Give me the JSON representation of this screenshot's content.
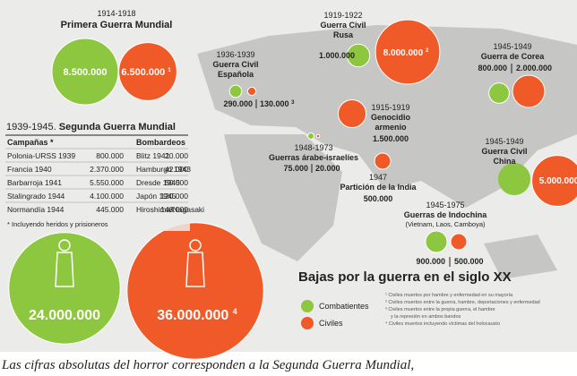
{
  "conflicts": [
    {
      "dates": "1914-1918",
      "name": "Primera Guerra Mundial",
      "combatants": {
        "value": 8500000,
        "label": "8.500.000"
      },
      "civilians": {
        "value": 6500000,
        "label": "6.500.000"
      },
      "note": "1"
    },
    {
      "dates": "1936-1939",
      "name": [
        "Guerra Civil",
        "Española"
      ],
      "combatants": {
        "value": 290000,
        "label": "290.000"
      },
      "civilians": {
        "value": 130000,
        "label": "130.000"
      },
      "note": "3"
    },
    {
      "dates": "1919-1922",
      "name": [
        "Guerra Civil",
        "Rusa"
      ],
      "combatants": {
        "value": 1000000,
        "label": "1.000.000"
      },
      "civilians": {
        "value": 8000000,
        "label": "8.000.000"
      },
      "note": "2"
    },
    {
      "dates": "1945-1949",
      "name": "Guerra de Corea",
      "combatants": {
        "value": 800000,
        "label": "800.000"
      },
      "civilians": {
        "value": 2000000,
        "label": "2.000.000"
      }
    },
    {
      "dates": "1915-1919",
      "name": [
        "Genocidio",
        "armenio"
      ],
      "civilians": {
        "value": 1500000,
        "label": "1.500.000"
      }
    },
    {
      "dates": "1948-1973",
      "name": "Guerras árabe-israelíes",
      "combatants": {
        "value": 75000,
        "label": "75.000"
      },
      "civilians": {
        "value": 20000,
        "label": "20.000"
      }
    },
    {
      "dates": "1947",
      "name": "Partición de la India",
      "civilians": {
        "value": 500000,
        "label": "500.000"
      }
    },
    {
      "dates": "1945-1949",
      "name": [
        "Guerra Civil",
        "China"
      ],
      "civilians": {
        "value": 5000000,
        "label": "5.000.000"
      }
    },
    {
      "dates": "1945-1975",
      "name": "Guerras de Indochina",
      "subtitle": "(Vietnam, Laos, Camboya)",
      "combatants": {
        "value": 900000,
        "label": "900.000"
      },
      "civilians": {
        "value": 500000,
        "label": "500.000"
      }
    }
  ],
  "wwii": {
    "dates": "1939-1945.",
    "name": "Segunda Guerra Mundial",
    "combatants": {
      "value": 24000000,
      "label": "24.000.000"
    },
    "civilians": {
      "value": 36000000,
      "label": "36.000.000"
    },
    "note": "4"
  },
  "table": {
    "headers": [
      "Campañas *",
      "Bombardeos"
    ],
    "rows": [
      [
        "Polonia-URSS 1939",
        "800.000",
        "Blitz 1941",
        "20.000"
      ],
      [
        "Francia 1940",
        "2.370.000",
        "Hamburgo 1943",
        "42.000"
      ],
      [
        "Barbarroja 1941",
        "5.550.000",
        "Dresde 1945",
        "50.000"
      ],
      [
        "Stalingrado 1944",
        "4.100.000",
        "Japón 1945",
        "120.000"
      ],
      [
        "Normandía 1944",
        "445.000",
        "Hiroshima/Nagasaki",
        "148.000"
      ]
    ],
    "footnote": "* Incluyendo heridos y prisioneros"
  },
  "legend": {
    "title": "Bajas por la guerra en el siglo XX",
    "items": [
      "Combatientes",
      "Civiles"
    ],
    "notes": [
      "¹ Civiles muertos por hambre y enfermedad en su mayoría",
      "² Civiles muertos entre la guerra, hambre, deportaciones y enfermedad",
      "³ Civiles muertos entre la propia guerra, el hambre",
      "y la represión en ambos bandos",
      "⁴ Civiles muertos incluyendo víctimas del holocausto"
    ]
  },
  "caption": "Las cifras absolutas del horror corresponden a la Segunda Guerra Mundial,"
}
